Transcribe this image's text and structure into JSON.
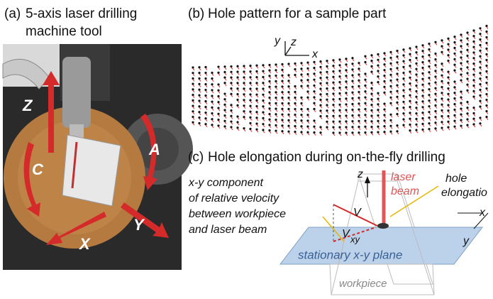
{
  "panel_a": {
    "label": "(a)",
    "title_lines": [
      "5-axis laser drilling",
      "machine tool"
    ],
    "axes": [
      "Z",
      "C",
      "A",
      "Y",
      "X"
    ]
  },
  "panel_b": {
    "label": "(b)",
    "title": "Hole pattern for a sample part",
    "axes": [
      "y",
      "z",
      "x"
    ]
  },
  "panel_c": {
    "label": "(c)",
    "title": "Hole elongation during on-the-fly drilling",
    "velocity_note": [
      "x-y component",
      "of relative velocity",
      "between workpiece",
      "and laser beam"
    ],
    "laser_beam": [
      "laser",
      "beam"
    ],
    "hole_elongation": [
      "hole",
      "elongatio"
    ],
    "axes": [
      "z",
      "x",
      "y"
    ],
    "velocity": "V",
    "velocity_xy": [
      "V",
      "xy"
    ],
    "plane": "stationary x-y plane",
    "workpiece": "workpiece"
  }
}
